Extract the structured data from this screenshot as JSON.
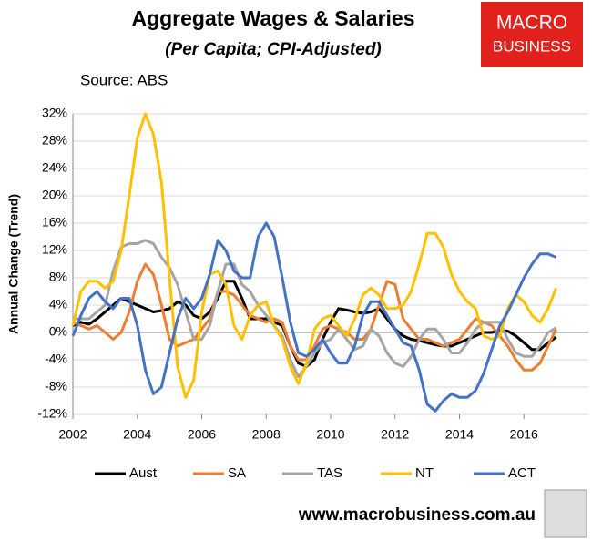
{
  "chart_data": {
    "type": "line",
    "title": "Aggregate Wages & Salaries",
    "subtitle": "(Per Capita; CPI-Adjusted)",
    "source": "Source: ABS",
    "logo": [
      "MACRO",
      "BUSINESS"
    ],
    "footer": "www.macrobusiness.com.au",
    "y_label": "Annual Change (Trend)",
    "x": [
      2002,
      2002.25,
      2002.5,
      2002.75,
      2003,
      2003.25,
      2003.5,
      2003.75,
      2004,
      2004.25,
      2004.5,
      2004.75,
      2005,
      2005.25,
      2005.5,
      2005.75,
      2006,
      2006.25,
      2006.5,
      2006.75,
      2007,
      2007.25,
      2007.5,
      2007.75,
      2008,
      2008.25,
      2008.5,
      2008.75,
      2009,
      2009.25,
      2009.5,
      2009.75,
      2010,
      2010.25,
      2010.5,
      2010.75,
      2011,
      2011.25,
      2011.5,
      2011.75,
      2012,
      2012.25,
      2012.5,
      2012.75,
      2013,
      2013.25,
      2013.5,
      2013.75,
      2014,
      2014.25,
      2014.5,
      2014.75,
      2015,
      2015.25,
      2015.5,
      2015.75,
      2016,
      2016.25,
      2016.5,
      2016.75,
      2017
    ],
    "xlim": [
      2002,
      2018
    ],
    "xticks": [
      2002,
      2004,
      2006,
      2008,
      2010,
      2012,
      2014,
      2016
    ],
    "ylim": [
      -12,
      32
    ],
    "yticks": [
      {
        "value": -12,
        "label": "-12%"
      },
      {
        "value": -8,
        "label": "-8%"
      },
      {
        "value": -4,
        "label": "-4%"
      },
      {
        "value": 0,
        "label": "0%"
      },
      {
        "value": 4,
        "label": "4%"
      },
      {
        "value": 8,
        "label": "8%"
      },
      {
        "value": 12,
        "label": "12%"
      },
      {
        "value": 16,
        "label": "16%"
      },
      {
        "value": 20,
        "label": "20%"
      },
      {
        "value": 24,
        "label": "24%"
      },
      {
        "value": 28,
        "label": "28%"
      },
      {
        "value": 32,
        "label": "32%"
      }
    ],
    "grid": true,
    "legend": "bottom",
    "series": [
      {
        "name": "Aust",
        "color": "#000000",
        "values": [
          1,
          1.5,
          1.2,
          2,
          3,
          4,
          5,
          4.5,
          4,
          3.5,
          3,
          3.2,
          3.5,
          4.5,
          4,
          2.5,
          2,
          3,
          5,
          7.5,
          7.5,
          5,
          2,
          2,
          2,
          1.5,
          1,
          -2,
          -4.5,
          -5,
          -4,
          -1,
          1.5,
          3.5,
          3.3,
          3,
          2.8,
          3,
          3.5,
          2,
          0.5,
          -0.5,
          -1,
          -1.2,
          -1.5,
          -1.8,
          -2,
          -2,
          -1.5,
          -1,
          -0.5,
          0,
          0,
          0.3,
          0.2,
          -0.5,
          -1.5,
          -2.5,
          -2.5,
          -1.5,
          -0.7
        ]
      },
      {
        "name": "SA",
        "color": "#ed7d31",
        "values": [
          1.5,
          1,
          0.5,
          1,
          0,
          -1,
          0,
          3,
          7.5,
          10,
          8.5,
          4,
          -1,
          -2,
          -1.5,
          -1,
          0.5,
          2,
          6,
          6,
          5.5,
          4,
          2.5,
          2,
          1.5,
          2,
          1.5,
          -2,
          -4,
          -4,
          -2,
          0.5,
          1,
          0.5,
          0,
          -1,
          -1,
          0.5,
          4,
          7.5,
          7,
          2,
          0.5,
          -1,
          -1,
          -1.5,
          -2,
          -1.5,
          -1,
          0.5,
          2,
          1.5,
          1,
          -0.5,
          -2,
          -4,
          -5.5,
          -5.5,
          -4.5,
          -2,
          0.5
        ]
      },
      {
        "name": "TAS",
        "color": "#a5a5a5",
        "values": [
          2,
          2,
          2,
          3,
          4,
          9,
          12.5,
          13,
          13,
          13.5,
          13,
          11,
          9.5,
          7,
          3,
          -1,
          -1,
          1,
          6,
          10,
          10,
          7,
          6,
          4,
          2.5,
          1,
          -0.5,
          -4,
          -6.5,
          -5,
          -3,
          -1.5,
          -1,
          0.5,
          -1,
          -2.5,
          -2,
          0.5,
          -0.5,
          -3,
          -4.5,
          -5,
          -3.5,
          -1,
          0.5,
          0.5,
          -1,
          -3,
          -3,
          -1.5,
          0.5,
          1.5,
          1.5,
          1.5,
          -1,
          -3,
          -3.5,
          -3.5,
          -2,
          0,
          0.7
        ]
      },
      {
        "name": "NT",
        "color": "#ffc000",
        "values": [
          1,
          6,
          7.5,
          7.5,
          6.5,
          7.5,
          12,
          20,
          28.5,
          32,
          29,
          22,
          8,
          -5,
          -9.5,
          -7,
          3,
          8.5,
          9,
          7,
          1,
          -1,
          2.5,
          4,
          4.5,
          1,
          -1,
          -5,
          -7.5,
          -4.5,
          0.5,
          2,
          2.5,
          1,
          -0.5,
          2,
          5.5,
          6.5,
          5.5,
          3.5,
          3.5,
          4,
          6,
          10,
          14.5,
          14.5,
          12.5,
          8.5,
          6,
          4.5,
          3.5,
          -0.5,
          -1,
          -0.5,
          3.5,
          5.5,
          4.5,
          2.5,
          1.5,
          3.5,
          6.5
        ]
      },
      {
        "name": "ACT",
        "color": "#4472c4",
        "values": [
          -0.5,
          2.5,
          5,
          6,
          4.5,
          3.5,
          5,
          5,
          1,
          -5.5,
          -9,
          -8,
          -3,
          2,
          5,
          3.5,
          5,
          8.5,
          13.5,
          12,
          9,
          8,
          8,
          14,
          16,
          14,
          8,
          1.5,
          -3,
          -3.5,
          -2.5,
          -1,
          -3,
          -4.5,
          -4.5,
          -2,
          2.5,
          4.5,
          4.5,
          2.5,
          0.5,
          -1.5,
          -2,
          -5.5,
          -10.5,
          -11.5,
          -10,
          -9,
          -9.5,
          -9.5,
          -8.5,
          -6,
          -2.5,
          1,
          3,
          5.5,
          8,
          10,
          11.5,
          11.5,
          11
        ]
      }
    ]
  }
}
